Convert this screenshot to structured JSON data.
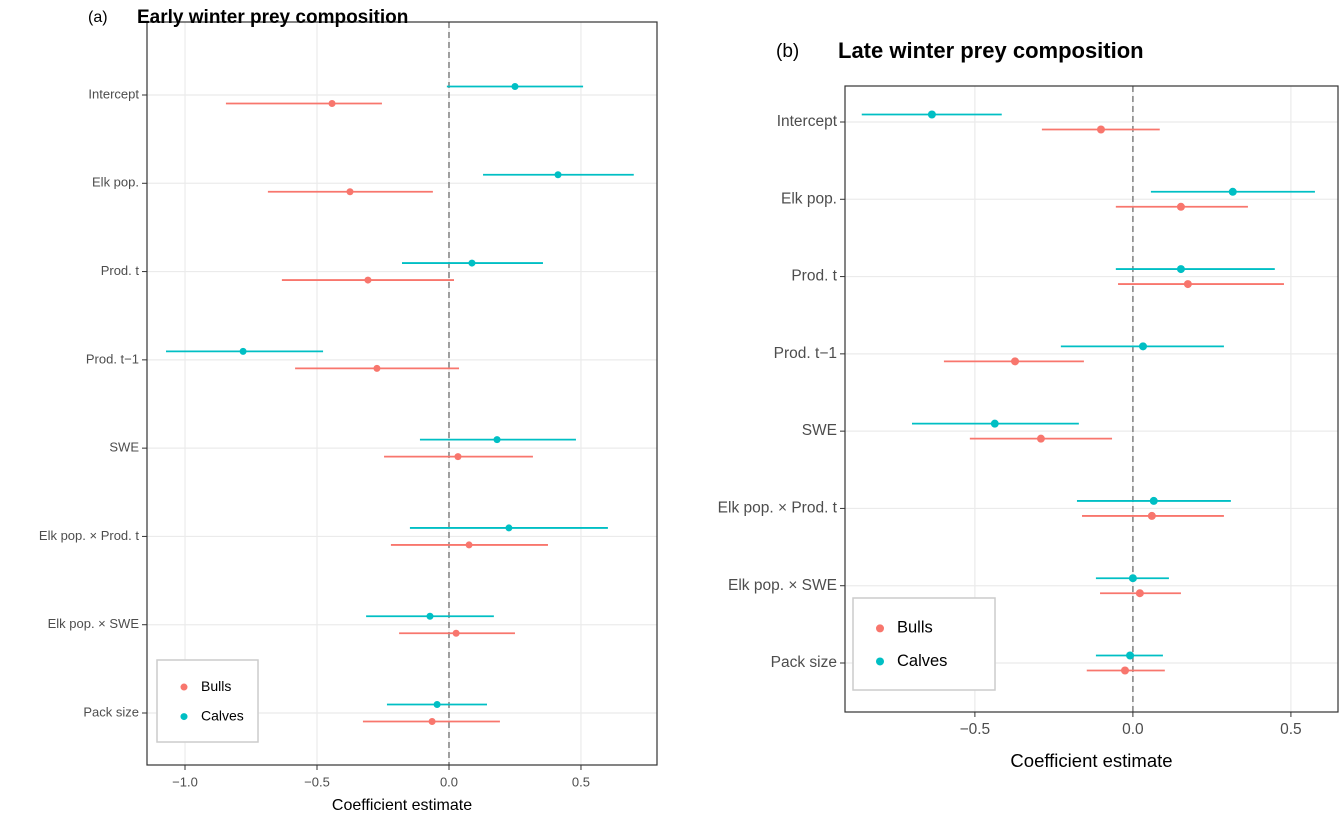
{
  "chart_data": [
    {
      "type": "forest",
      "tag": "(a)",
      "title": "Early winter prey composition",
      "x_label": "Coefficient estimate",
      "categories": [
        "Intercept",
        "Elk pop.",
        "Prod. t",
        "Prod. t−1",
        "SWE",
        "Elk pop. × Prod. t",
        "Elk pop. × SWE",
        "Pack size"
      ],
      "series": [
        {
          "name": "Bulls",
          "color": "#F8766D",
          "values": [
            -0.443,
            -0.375,
            -0.307,
            -0.273,
            0.034,
            0.076,
            0.027,
            -0.064
          ],
          "lower": [
            -0.845,
            -0.686,
            -0.633,
            -0.583,
            -0.246,
            -0.22,
            -0.189,
            -0.326
          ],
          "upper": [
            -0.254,
            -0.061,
            0.019,
            0.038,
            0.318,
            0.375,
            0.25,
            0.193
          ]
        },
        {
          "name": "Calves",
          "color": "#00BFC4",
          "values": [
            0.25,
            0.413,
            0.087,
            -0.78,
            0.182,
            0.227,
            -0.072,
            -0.045
          ],
          "lower": [
            -0.008,
            0.129,
            -0.178,
            -1.072,
            -0.11,
            -0.148,
            -0.314,
            -0.235
          ],
          "upper": [
            0.508,
            0.7,
            0.356,
            -0.477,
            0.481,
            0.602,
            0.17,
            0.144
          ]
        }
      ],
      "xlim": [
        -1.144,
        0.788
      ],
      "xticks": [
        {
          "value": -1.0,
          "label": "−1.0"
        },
        {
          "value": -0.5,
          "label": "−0.5"
        },
        {
          "value": 0,
          "label": "0.0"
        },
        {
          "value": 0.5,
          "label": "0.5"
        }
      ],
      "reference_line": 0,
      "grid": true,
      "legend": "bottom-left"
    },
    {
      "type": "forest",
      "tag": "(b)",
      "title": "Late winter prey composition",
      "x_label": "Coefficient estimate",
      "categories": [
        "Intercept",
        "Elk pop.",
        "Prod. t",
        "Prod. t−1",
        "SWE",
        "Elk pop. × Prod. t",
        "Elk pop. × SWE",
        "Pack size"
      ],
      "series": [
        {
          "name": "Bulls",
          "color": "#F8766D",
          "values": [
            -0.101,
            0.152,
            0.174,
            -0.373,
            -0.291,
            0.06,
            0.022,
            -0.025
          ],
          "lower": [
            -0.288,
            -0.054,
            -0.047,
            -0.598,
            -0.516,
            -0.161,
            -0.104,
            -0.146
          ],
          "upper": [
            0.085,
            0.364,
            0.478,
            -0.155,
            -0.066,
            0.288,
            0.152,
            0.101
          ]
        },
        {
          "name": "Calves",
          "color": "#00BFC4",
          "values": [
            -0.636,
            0.316,
            0.152,
            0.032,
            -0.437,
            0.066,
            0.0,
            -0.009
          ],
          "lower": [
            -0.858,
            0.057,
            -0.054,
            -0.228,
            -0.699,
            -0.177,
            -0.117,
            -0.117
          ],
          "upper": [
            -0.415,
            0.576,
            0.449,
            0.288,
            -0.171,
            0.31,
            0.114,
            0.095
          ]
        }
      ],
      "xlim": [
        -0.911,
        0.649
      ],
      "xticks": [
        {
          "value": -0.5,
          "label": "−0.5"
        },
        {
          "value": 0,
          "label": "0.0"
        },
        {
          "value": 0.5,
          "label": "0.5"
        }
      ],
      "reference_line": 0,
      "grid": true,
      "legend": "bottom-left"
    }
  ]
}
